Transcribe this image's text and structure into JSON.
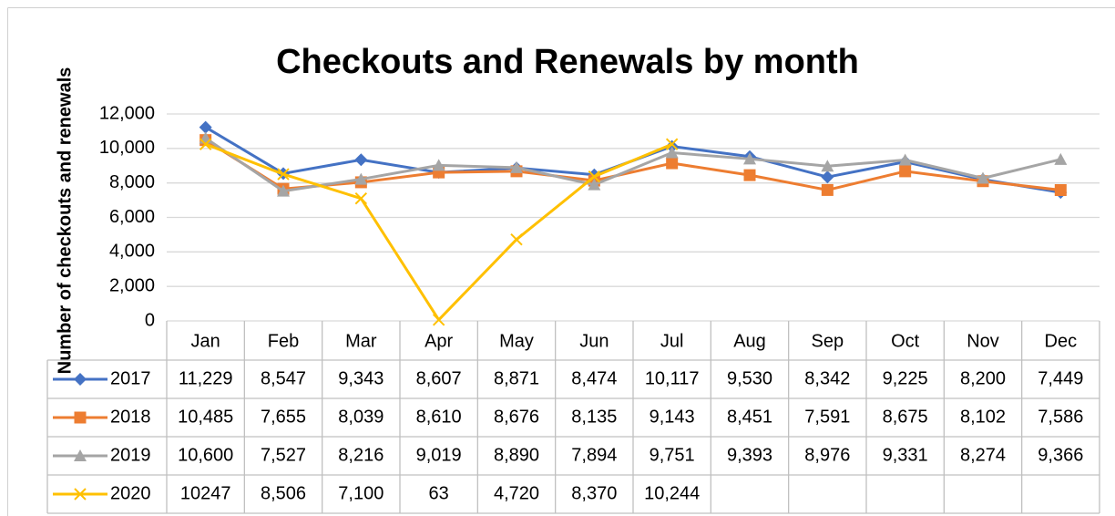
{
  "chart_data": {
    "type": "line",
    "title": "Checkouts and Renewals by month",
    "y_label": "Number of checkouts and renewals",
    "categories": [
      "Jan",
      "Feb",
      "Mar",
      "Apr",
      "May",
      "Jun",
      "Jul",
      "Aug",
      "Sep",
      "Oct",
      "Nov",
      "Dec"
    ],
    "ylim": [
      0,
      12000
    ],
    "yticks": [
      0,
      {
        "value": 2000,
        "label": "2,000"
      },
      {
        "value": 4000,
        "label": "4,000"
      },
      {
        "value": 6000,
        "label": "6,000"
      },
      {
        "value": 8000,
        "label": "8,000"
      },
      {
        "value": 10000,
        "label": "10,000"
      },
      {
        "value": 12000,
        "label": "12,000"
      }
    ],
    "grid": true,
    "data_table": true,
    "series": [
      {
        "name": "2017",
        "color": "#4472c4",
        "marker": "diamond",
        "values": [
          11229,
          8547,
          9343,
          8607,
          8871,
          8474,
          10117,
          9530,
          8342,
          9225,
          8200,
          7449
        ],
        "value_labels": [
          "11,229",
          "8,547",
          "9,343",
          "8,607",
          "8,871",
          "8,474",
          "10,117",
          "9,530",
          "8,342",
          "9,225",
          "8,200",
          "7,449"
        ]
      },
      {
        "name": "2018",
        "color": "#ed7d31",
        "marker": "square",
        "values": [
          10485,
          7655,
          8039,
          8610,
          8676,
          8135,
          9143,
          8451,
          7591,
          8675,
          8102,
          7586
        ],
        "value_labels": [
          "10,485",
          "7,655",
          "8,039",
          "8,610",
          "8,676",
          "8,135",
          "9,143",
          "8,451",
          "7,591",
          "8,675",
          "8,102",
          "7,586"
        ]
      },
      {
        "name": "2019",
        "color": "#a5a5a5",
        "marker": "triangle",
        "values": [
          10600,
          7527,
          8216,
          9019,
          8890,
          7894,
          9751,
          9393,
          8976,
          9331,
          8274,
          9366
        ],
        "value_labels": [
          "10,600",
          "7,527",
          "8,216",
          "9,019",
          "8,890",
          "7,894",
          "9,751",
          "9,393",
          "8,976",
          "9,331",
          "8,274",
          "9,366"
        ]
      },
      {
        "name": "2020",
        "color": "#ffc000",
        "marker": "x",
        "values": [
          10247,
          8506,
          7100,
          63,
          4720,
          8370,
          10244,
          null,
          null,
          null,
          null,
          null
        ],
        "value_labels": [
          "10247",
          "8,506",
          "7,100",
          "63",
          "4,720",
          "8,370",
          "10,244",
          null,
          null,
          null,
          null,
          null
        ]
      }
    ]
  }
}
